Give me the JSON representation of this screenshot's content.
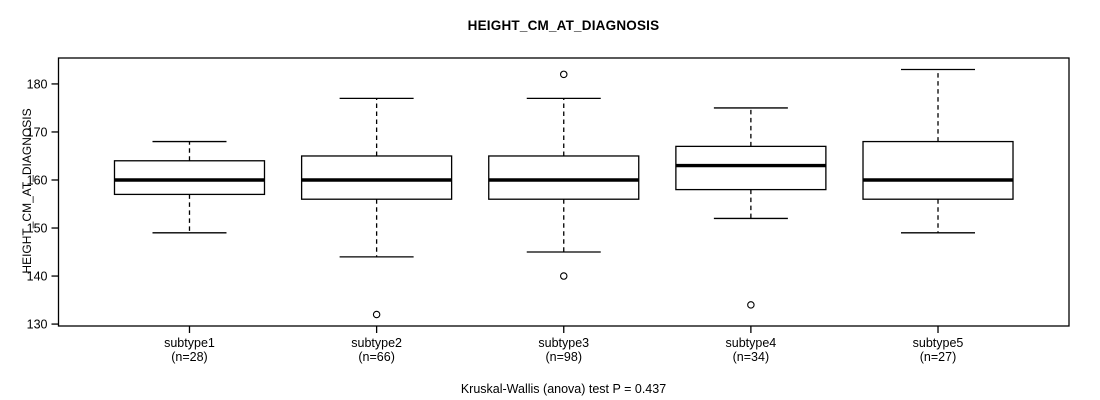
{
  "chart_data": {
    "type": "box",
    "title": "HEIGHT_CM_AT_DIAGNOSIS",
    "ylabel": "HEIGHT_CM_AT_DIAGNOSIS",
    "caption": "Kruskal-Wallis (anova) test P = 0.437",
    "p_value": 0.437,
    "ylim": [
      129.6,
      185.4
    ],
    "yticks": [
      130,
      140,
      150,
      160,
      170,
      180
    ],
    "grid": false,
    "legend": "none",
    "groups": [
      {
        "label": "subtype1",
        "n_label": "(n=28)",
        "n": 28,
        "whisker_low": 149,
        "q1": 157,
        "median": 160,
        "q3": 164,
        "whisker_high": 168,
        "outliers": []
      },
      {
        "label": "subtype2",
        "n_label": "(n=66)",
        "n": 66,
        "whisker_low": 144,
        "q1": 156,
        "median": 160,
        "q3": 165,
        "whisker_high": 177,
        "outliers": [
          132
        ]
      },
      {
        "label": "subtype3",
        "n_label": "(n=98)",
        "n": 98,
        "whisker_low": 145,
        "q1": 156,
        "median": 160,
        "q3": 165,
        "whisker_high": 177,
        "outliers": [
          182,
          140
        ]
      },
      {
        "label": "subtype4",
        "n_label": "(n=34)",
        "n": 34,
        "whisker_low": 152,
        "q1": 158,
        "median": 163,
        "q3": 167,
        "whisker_high": 175,
        "outliers": [
          134
        ]
      },
      {
        "label": "subtype5",
        "n_label": "(n=27)",
        "n": 27,
        "whisker_low": 149,
        "q1": 156,
        "median": 160,
        "q3": 168,
        "whisker_high": 183,
        "outliers": []
      }
    ],
    "colors": {
      "background": "#ffffff",
      "line": "#000000",
      "text": "#000000",
      "box_fill": "#ffffff"
    }
  }
}
